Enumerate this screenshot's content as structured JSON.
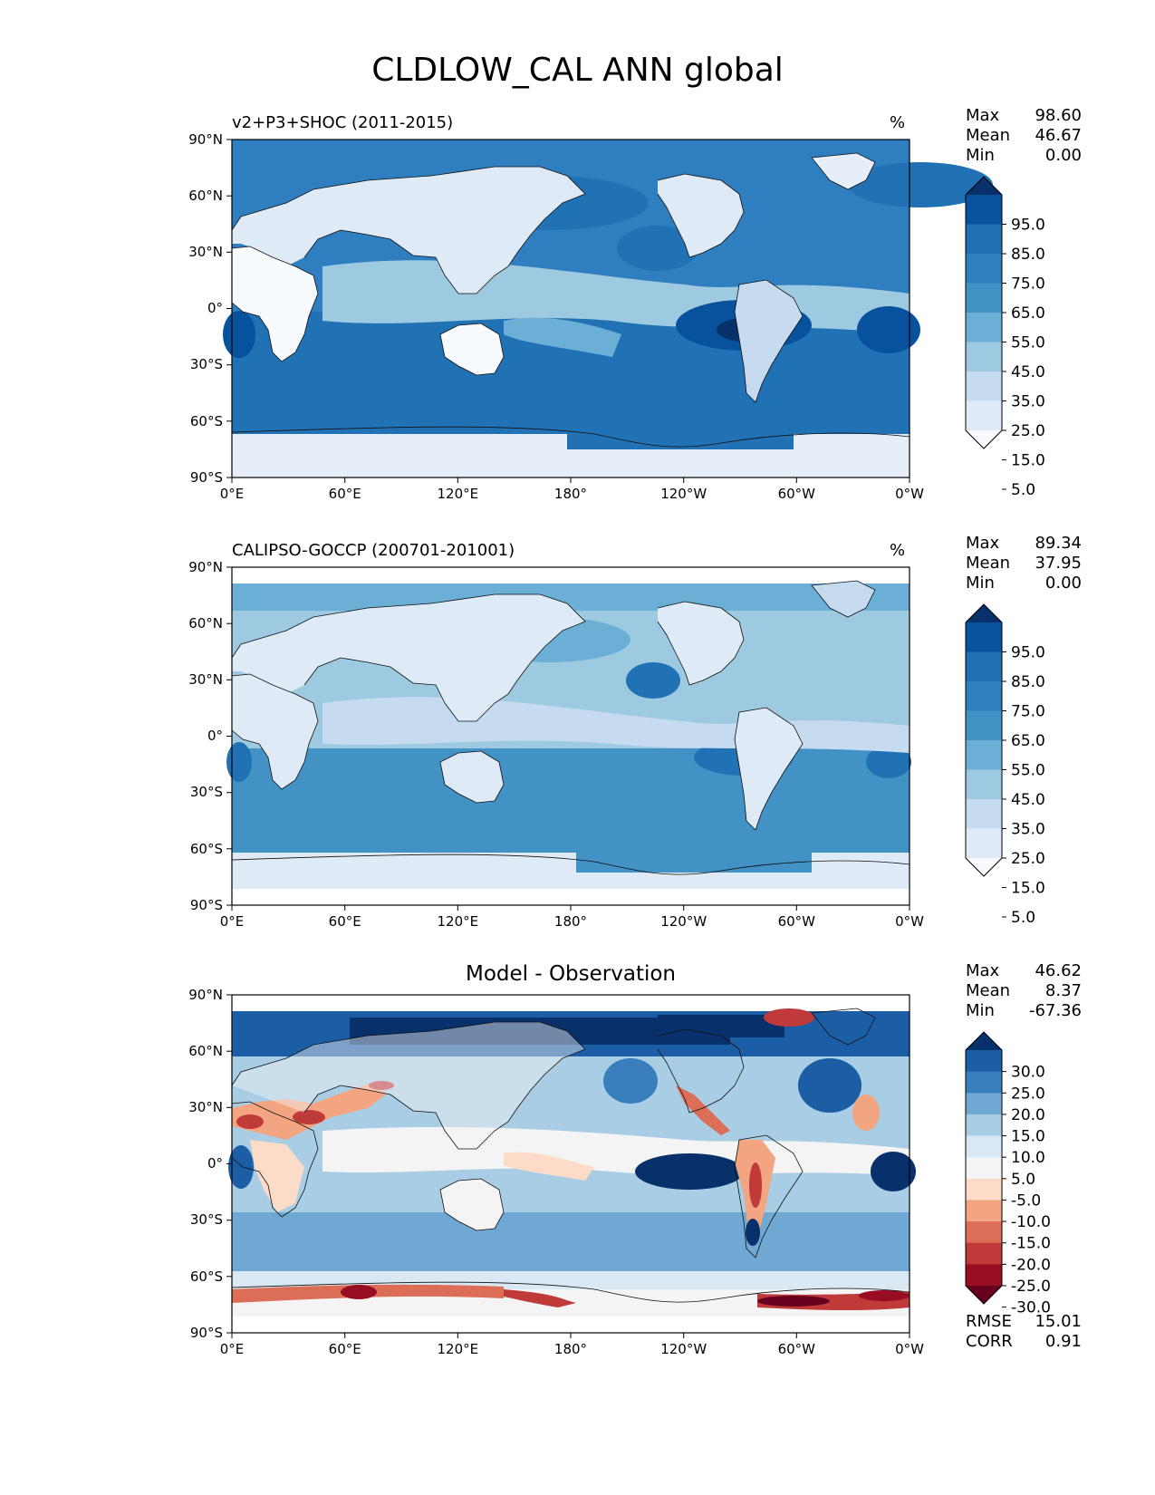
{
  "figure": {
    "title": "CLDLOW_CAL ANN global"
  },
  "axes": {
    "lat_labels": [
      "90°N",
      "60°N",
      "30°N",
      "0°",
      "30°S",
      "60°S",
      "90°S"
    ],
    "lon_labels": [
      "0°E",
      "60°E",
      "120°E",
      "180°",
      "120°W",
      "60°W",
      "0°W"
    ]
  },
  "panels": [
    {
      "id": "test",
      "title_left": "v2+P3+SHOC (2011-2015)",
      "title_center": "",
      "unit": "%",
      "stats": [
        {
          "label": "Max",
          "value": "98.60"
        },
        {
          "label": "Mean",
          "value": "46.67"
        },
        {
          "label": "Min",
          "value": "0.00"
        }
      ],
      "colorbar": {
        "labels": [
          "95.0",
          "85.0",
          "75.0",
          "65.0",
          "55.0",
          "45.0",
          "35.0",
          "25.0",
          "15.0",
          "5.0"
        ],
        "colors": [
          "#08306b",
          "#08519c",
          "#2171b5",
          "#2f7fc0",
          "#4292c6",
          "#6baed6",
          "#9ecae1",
          "#c6dbef",
          "#deebf7",
          "#f7fbff"
        ]
      }
    },
    {
      "id": "reference",
      "title_left": "CALIPSO-GOCCP (200701-201001)",
      "title_center": "",
      "unit": "%",
      "stats": [
        {
          "label": "Max",
          "value": "89.34"
        },
        {
          "label": "Mean",
          "value": "37.95"
        },
        {
          "label": "Min",
          "value": "0.00"
        }
      ],
      "colorbar": {
        "labels": [
          "95.0",
          "85.0",
          "75.0",
          "65.0",
          "55.0",
          "45.0",
          "35.0",
          "25.0",
          "15.0",
          "5.0"
        ],
        "colors": [
          "#08306b",
          "#08519c",
          "#2171b5",
          "#2f7fc0",
          "#4292c6",
          "#6baed6",
          "#9ecae1",
          "#c6dbef",
          "#deebf7",
          "#f7fbff"
        ]
      }
    },
    {
      "id": "difference",
      "title_left": "",
      "title_center": "Model - Observation",
      "unit": "",
      "stats": [
        {
          "label": "Max",
          "value": "46.62"
        },
        {
          "label": "Mean",
          "value": "8.37"
        },
        {
          "label": "Min",
          "value": "-67.36"
        }
      ],
      "extra_stats": [
        {
          "label": "RMSE",
          "value": "15.01"
        },
        {
          "label": "CORR",
          "value": "0.91"
        }
      ],
      "colorbar": {
        "labels": [
          "30.0",
          "25.0",
          "20.0",
          "15.0",
          "10.0",
          "5.0",
          "-5.0",
          "-10.0",
          "-15.0",
          "-20.0",
          "-25.0",
          "-30.0"
        ],
        "colors": [
          "#08306b",
          "#1c5ea6",
          "#3a7fbd",
          "#6fa8d2",
          "#a8cde4",
          "#d9e8f2",
          "#f4f4f4",
          "#fcdbc8",
          "#f3a582",
          "#dc6e57",
          "#c03a3a",
          "#970d22",
          "#67001f"
        ]
      }
    }
  ]
}
